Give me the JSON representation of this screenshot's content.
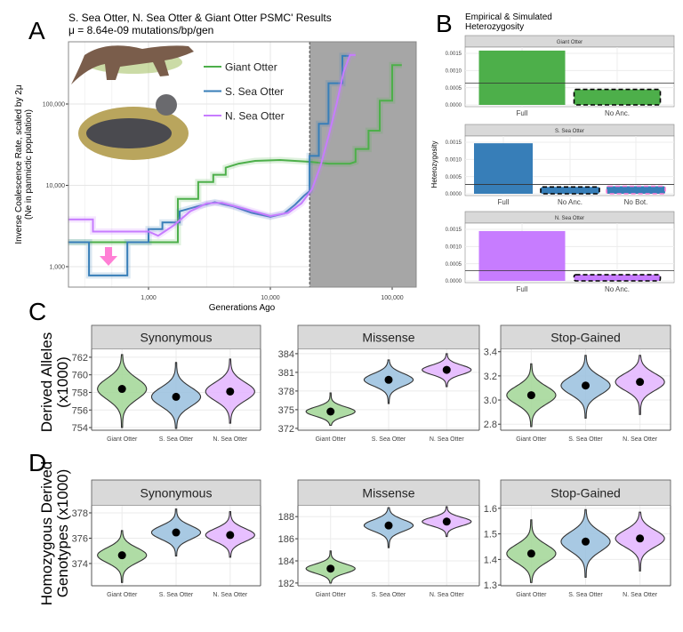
{
  "panel_letters": {
    "a": "A",
    "b": "B",
    "c": "C",
    "d": "D"
  },
  "colors": {
    "giant": "#4daf4a",
    "south": "#377eb8",
    "north": "#c77cff",
    "shade": "#a6a6a6",
    "arrow": "#ff7fd5"
  },
  "chart_data": [
    {
      "id": "psmc",
      "type": "line",
      "title": "S. Sea Otter, N. Sea Otter & Giant Otter PSMC' Results",
      "subtitle": "μ = 8.64e-09 mutations/bp/gen",
      "xlabel": "Generations Ago",
      "ylabel": "Inverse Coalescence Rate, scaled by 2μ",
      "ylabel2": "(Ne in panmictic population)",
      "x_scale": "log",
      "y_scale": "log",
      "xlim": [
        218,
        130000
      ],
      "ylim": [
        600,
        450000
      ],
      "x_ticks": [
        {
          "v": 1000,
          "label": "1,000"
        },
        {
          "v": 10000,
          "label": "10,000"
        },
        {
          "v": 100000,
          "label": "100,000"
        }
      ],
      "y_ticks": [
        {
          "v": 1000,
          "label": "1,000"
        },
        {
          "v": 10000,
          "label": "10,000"
        },
        {
          "v": 100000,
          "label": "100,000"
        }
      ],
      "shaded_from": 21000,
      "legend": "top-center",
      "series": [
        {
          "name": "Giant Otter",
          "color": "#4daf4a",
          "points": [
            [
              218,
              2000
            ],
            [
              1740,
              2000
            ],
            [
              1740,
              6800
            ],
            [
              2560,
              6800
            ],
            [
              2560,
              11000
            ],
            [
              3400,
              11000
            ],
            [
              3400,
              13500
            ],
            [
              4300,
              13500
            ],
            [
              4300,
              16500
            ],
            [
              5500,
              18500
            ],
            [
              7500,
              20000
            ],
            [
              12000,
              20500
            ],
            [
              21000,
              19500
            ],
            [
              30000,
              18500
            ],
            [
              45000,
              18500
            ],
            [
              50000,
              19500
            ],
            [
              50000,
              28000
            ],
            [
              64000,
              28000
            ],
            [
              64000,
              47000
            ],
            [
              79000,
              47000
            ],
            [
              79000,
              110000
            ],
            [
              100000,
              110000
            ],
            [
              100000,
              300000
            ],
            [
              120000,
              300000
            ]
          ]
        },
        {
          "name": "S. Sea Otter",
          "color": "#377eb8",
          "points": [
            [
              218,
              2000
            ],
            [
              325,
              2000
            ],
            [
              325,
              780
            ],
            [
              670,
              780
            ],
            [
              670,
              2000
            ],
            [
              1000,
              2000
            ],
            [
              1000,
              2900
            ],
            [
              1300,
              2900
            ],
            [
              1300,
              3500
            ],
            [
              1800,
              3500
            ],
            [
              1800,
              4800
            ],
            [
              2500,
              5500
            ],
            [
              3500,
              6200
            ],
            [
              5000,
              5500
            ],
            [
              7000,
              4600
            ],
            [
              10000,
              4100
            ],
            [
              13000,
              4500
            ],
            [
              16000,
              5800
            ],
            [
              19000,
              7500
            ],
            [
              21000,
              8500
            ],
            [
              21000,
              23000
            ],
            [
              25000,
              23000
            ],
            [
              25000,
              57000
            ],
            [
              30000,
              57000
            ],
            [
              30000,
              180000
            ],
            [
              39000,
              180000
            ],
            [
              39000,
              390000
            ],
            [
              45000,
              390000
            ]
          ]
        },
        {
          "name": "N. Sea Otter",
          "color": "#c77cff",
          "points": [
            [
              218,
              3800
            ],
            [
              350,
              3800
            ],
            [
              350,
              2700
            ],
            [
              1000,
              2700
            ],
            [
              1200,
              2400
            ],
            [
              1600,
              3200
            ],
            [
              2200,
              4800
            ],
            [
              3000,
              6000
            ],
            [
              4000,
              6100
            ],
            [
              6000,
              5200
            ],
            [
              10000,
              4200
            ],
            [
              14000,
              4600
            ],
            [
              18000,
              6000
            ],
            [
              22000,
              9000
            ],
            [
              26000,
              18000
            ],
            [
              30000,
              40000
            ],
            [
              35000,
              100000
            ],
            [
              40000,
              250000
            ],
            [
              45000,
              400000
            ],
            [
              50000,
              400000
            ]
          ]
        }
      ]
    },
    {
      "id": "heterozygosity",
      "type": "bar",
      "title": "Empirical & Simulated",
      "title2": "Heterozygosity",
      "ylabel": "Heterozygosity",
      "ylim": [
        0,
        0.00165
      ],
      "y_ticks": [
        "0.0000",
        "0.0005",
        "0.0010",
        "0.0015"
      ],
      "facets": [
        {
          "name": "Giant Otter",
          "color": "#4daf4a",
          "empirical": 0.00063,
          "categories": [
            "Full",
            "No Anc."
          ],
          "values": [
            0.00158,
            0.00045
          ],
          "outline": [
            "none",
            "black-dashed"
          ]
        },
        {
          "name": "S. Sea Otter",
          "color": "#377eb8",
          "empirical": 0.00027,
          "categories": [
            "Full",
            "No Anc.",
            "No Bot."
          ],
          "values": [
            0.00147,
            0.0002,
            0.00022
          ],
          "outline": [
            "none",
            "black-dashed",
            "pink-dashed"
          ]
        },
        {
          "name": "N. Sea Otter",
          "color": "#c77cff",
          "empirical": 0.0003,
          "categories": [
            "Full",
            "No Anc."
          ],
          "values": [
            0.00145,
            0.00018
          ],
          "outline": [
            "none",
            "black-dashed"
          ]
        }
      ]
    },
    {
      "id": "derived-alleles",
      "type": "violin",
      "ylabel": "Derived Alleles",
      "ylabel2": "(x1000)",
      "categories": [
        "Giant Otter",
        "S. Sea Otter",
        "N. Sea Otter"
      ],
      "facets": [
        {
          "name": "Synonymous",
          "ylim": [
            753.7,
            762.9
          ],
          "y_ticks": [
            754,
            756,
            758,
            760,
            762
          ],
          "means": [
            758.4,
            757.5,
            758.1
          ],
          "ranges": [
            [
              754,
              762.3
            ],
            [
              753.9,
              761.4
            ],
            [
              754.5,
              761.8
            ]
          ]
        },
        {
          "name": "Missense",
          "ylim": [
            371.7,
            384.7
          ],
          "y_ticks": [
            372,
            375,
            378,
            381,
            384
          ],
          "means": [
            374.7,
            379.8,
            381.4
          ],
          "ranges": [
            [
              372.5,
              377.7
            ],
            [
              376,
              383
            ],
            [
              378.7,
              384
            ]
          ]
        },
        {
          "name": "Stop-Gained",
          "ylim": [
            2.75,
            3.42
          ],
          "y_ticks": [
            "2.8",
            "3.0",
            "3.2",
            "3.4"
          ],
          "means": [
            3.04,
            3.12,
            3.15
          ],
          "ranges": [
            [
              2.78,
              3.3
            ],
            [
              2.85,
              3.37
            ],
            [
              2.88,
              3.37
            ]
          ]
        }
      ]
    },
    {
      "id": "homozygous-derived",
      "type": "violin",
      "ylabel": "Homozygous Derived",
      "ylabel2": "Genotypes (x1000)",
      "categories": [
        "Giant Otter",
        "S. Sea Otter",
        "N. Sea Otter"
      ],
      "facets": [
        {
          "name": "Synonymous",
          "ylim": [
            372.24,
            378.56
          ],
          "y_ticks": [
            374,
            376,
            378
          ],
          "means": [
            374.65,
            376.45,
            376.25
          ],
          "ranges": [
            [
              372.5,
              376.6
            ],
            [
              374.6,
              378.3
            ],
            [
              374.5,
              378.1
            ]
          ]
        },
        {
          "name": "Missense",
          "ylim": [
            181.75,
            188.98
          ],
          "y_ticks": [
            182,
            184,
            186,
            188
          ],
          "means": [
            183.3,
            187.2,
            187.55
          ],
          "ranges": [
            [
              182,
              184.9
            ],
            [
              185.2,
              188.8
            ],
            [
              186.2,
              188.9
            ]
          ]
        },
        {
          "name": "Stop-Gained",
          "ylim": [
            1.297,
            1.61
          ],
          "y_ticks": [
            "1.3",
            "1.4",
            "1.5",
            "1.6"
          ],
          "means": [
            1.423,
            1.47,
            1.482
          ],
          "ranges": [
            [
              1.31,
              1.555
            ],
            [
              1.33,
              1.595
            ],
            [
              1.355,
              1.585
            ]
          ]
        }
      ]
    }
  ]
}
